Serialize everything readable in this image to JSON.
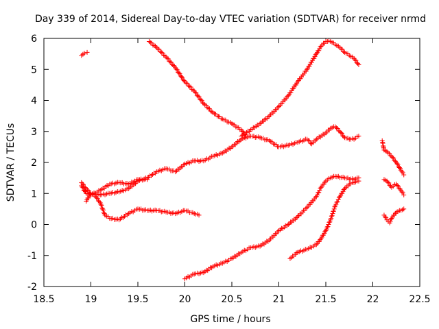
{
  "chart_data": {
    "type": "scatter",
    "title": "Day 339 of 2014, Sidereal Day-to-day VTEC variation (SDTVAR) for receiver nrmd",
    "xlabel": "GPS time / hours",
    "ylabel": "SDTVAR / TECUs",
    "xlim": [
      18.5,
      22.5
    ],
    "ylim": [
      -2,
      6
    ],
    "xticks": [
      "18.5",
      "19",
      "19.5",
      "20",
      "20.5",
      "21",
      "21.5",
      "22",
      "22.5"
    ],
    "yticks": [
      "-2",
      "-1",
      "0",
      "1",
      "2",
      "3",
      "4",
      "5",
      "6"
    ],
    "marker": "+",
    "color": "#ff0000",
    "series": [
      {
        "name": "s1",
        "x": [
          18.9,
          18.93,
          18.96
        ],
        "y": [
          5.45,
          5.52,
          5.55
        ]
      },
      {
        "name": "s2",
        "x": [
          19.62,
          19.7,
          19.8,
          19.9,
          20.0,
          20.1,
          20.2,
          20.3,
          20.4,
          20.5,
          20.6,
          20.65
        ],
        "y": [
          5.9,
          5.7,
          5.4,
          5.05,
          4.6,
          4.3,
          3.9,
          3.6,
          3.4,
          3.25,
          3.05,
          2.85
        ]
      },
      {
        "name": "s3",
        "x": [
          18.9,
          18.95,
          19.0,
          19.1,
          19.2,
          19.3,
          19.4,
          19.5,
          19.6,
          19.7,
          19.8,
          19.9,
          20.0,
          20.1,
          20.2,
          20.3,
          20.4,
          20.5,
          20.6,
          20.7,
          20.8,
          20.9,
          21.0,
          21.1,
          21.2,
          21.3,
          21.35,
          21.4,
          21.5,
          21.55,
          21.6,
          21.65,
          21.7,
          21.75,
          21.8,
          21.85
        ],
        "y": [
          1.35,
          1.15,
          1.0,
          0.95,
          1.0,
          1.05,
          1.15,
          1.4,
          1.5,
          1.7,
          1.8,
          1.7,
          1.95,
          2.05,
          2.05,
          2.2,
          2.3,
          2.5,
          2.75,
          2.85,
          2.8,
          2.7,
          2.5,
          2.55,
          2.65,
          2.75,
          2.6,
          2.75,
          2.95,
          3.1,
          3.15,
          3.0,
          2.8,
          2.75,
          2.75,
          2.85
        ]
      },
      {
        "name": "s4",
        "x": [
          20.6,
          20.7,
          20.8,
          20.9,
          21.0,
          21.1,
          21.2,
          21.3,
          21.4,
          21.45,
          21.5,
          21.55,
          21.6,
          21.65,
          21.7,
          21.75,
          21.8,
          21.85
        ],
        "y": [
          2.85,
          3.05,
          3.25,
          3.5,
          3.8,
          4.15,
          4.6,
          5.0,
          5.5,
          5.75,
          5.9,
          5.9,
          5.8,
          5.7,
          5.55,
          5.45,
          5.35,
          5.15
        ]
      },
      {
        "name": "s5",
        "x": [
          18.9,
          18.95,
          19.0,
          19.1,
          19.2,
          19.3,
          19.4,
          19.5,
          19.6
        ],
        "y": [
          1.25,
          1.0,
          0.95,
          1.1,
          1.3,
          1.35,
          1.3,
          1.45,
          1.45
        ]
      },
      {
        "name": "s6",
        "x": [
          18.95,
          19.0,
          19.05,
          19.1,
          19.15,
          19.2,
          19.3,
          19.4,
          19.5,
          19.6,
          19.7,
          19.8,
          19.9,
          20.0,
          20.1,
          20.15
        ],
        "y": [
          0.75,
          1.0,
          0.9,
          0.7,
          0.3,
          0.2,
          0.15,
          0.35,
          0.5,
          0.45,
          0.45,
          0.4,
          0.35,
          0.45,
          0.35,
          0.3
        ]
      },
      {
        "name": "s7",
        "x": [
          20.0,
          20.1,
          20.2,
          20.3,
          20.4,
          20.5,
          20.6,
          20.7,
          20.8,
          20.9,
          21.0,
          21.1,
          21.2,
          21.3,
          21.4,
          21.45,
          21.5,
          21.55,
          21.6,
          21.7,
          21.8,
          21.85
        ],
        "y": [
          -1.75,
          -1.6,
          -1.55,
          -1.35,
          -1.25,
          -1.1,
          -0.9,
          -0.75,
          -0.7,
          -0.5,
          -0.2,
          0.0,
          0.25,
          0.55,
          0.9,
          1.2,
          1.4,
          1.5,
          1.55,
          1.5,
          1.45,
          1.5
        ]
      },
      {
        "name": "s8",
        "x": [
          21.12,
          21.2,
          21.3,
          21.4,
          21.45,
          21.5,
          21.55,
          21.6,
          21.65,
          21.7,
          21.75,
          21.8,
          21.85
        ],
        "y": [
          -1.1,
          -0.9,
          -0.8,
          -0.65,
          -0.45,
          -0.2,
          0.15,
          0.6,
          0.9,
          1.15,
          1.3,
          1.35,
          1.4
        ]
      },
      {
        "name": "s9",
        "x": [
          22.1,
          22.12,
          22.15,
          22.2,
          22.25,
          22.3,
          22.33
        ],
        "y": [
          2.7,
          2.4,
          2.35,
          2.2,
          2.0,
          1.75,
          1.6
        ]
      },
      {
        "name": "s10",
        "x": [
          22.12,
          22.15,
          22.2,
          22.25,
          22.3,
          22.33
        ],
        "y": [
          1.45,
          1.4,
          1.2,
          1.3,
          1.1,
          0.95
        ]
      },
      {
        "name": "s11",
        "x": [
          22.12,
          22.15,
          22.18,
          22.2,
          22.25,
          22.3,
          22.33
        ],
        "y": [
          0.3,
          0.15,
          0.05,
          0.2,
          0.4,
          0.45,
          0.5
        ]
      }
    ]
  }
}
